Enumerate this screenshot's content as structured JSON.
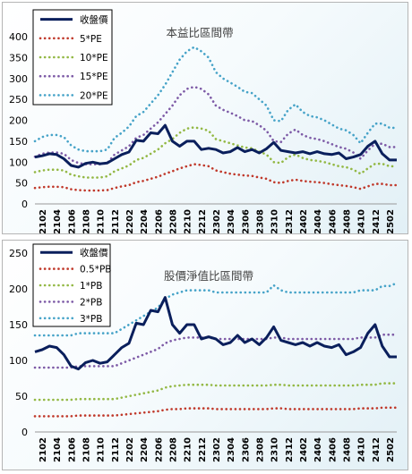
{
  "chart_data": [
    {
      "type": "line",
      "title": "本益比區間帶",
      "x": [
        "2101",
        "2102",
        "2103",
        "2104",
        "2105",
        "2106",
        "2107",
        "2108",
        "2109",
        "2110",
        "2111",
        "2112",
        "2201",
        "2202",
        "2203",
        "2204",
        "2205",
        "2206",
        "2207",
        "2208",
        "2209",
        "2210",
        "2211",
        "2212",
        "2301",
        "2302",
        "2303",
        "2304",
        "2305",
        "2306",
        "2307",
        "2308",
        "2309",
        "2310",
        "2311",
        "2312",
        "2401",
        "2402",
        "2403",
        "2404",
        "2405",
        "2406",
        "2407",
        "2408",
        "2409",
        "2410",
        "2411",
        "2412",
        "2501",
        "2502",
        "2503"
      ],
      "x_tick_labels": [
        "2102",
        "2104",
        "2106",
        "2108",
        "2110",
        "2112",
        "2202",
        "2204",
        "2206",
        "2208",
        "2210",
        "2212",
        "2302",
        "2304",
        "2306",
        "2308",
        "2310",
        "2312",
        "2402",
        "2404",
        "2406",
        "2408",
        "2410",
        "2412",
        "2502"
      ],
      "ylim": [
        0,
        400
      ],
      "yticks": [
        0,
        50,
        100,
        150,
        200,
        250,
        300,
        350,
        400
      ],
      "legend_position": "top-left",
      "grid": false,
      "series": [
        {
          "name": "收盤價",
          "style": "solid",
          "color": "#0a1f5c",
          "values": [
            112,
            115,
            120,
            118,
            108,
            92,
            88,
            97,
            100,
            96,
            98,
            108,
            118,
            124,
            152,
            150,
            170,
            168,
            188,
            150,
            138,
            150,
            150,
            130,
            133,
            130,
            122,
            125,
            135,
            125,
            130,
            122,
            132,
            147,
            128,
            125,
            122,
            125,
            120,
            125,
            120,
            118,
            122,
            108,
            112,
            118,
            138,
            150,
            120,
            105,
            105
          ]
        },
        {
          "name": "5*PE",
          "style": "dotted",
          "color": "#c0392b",
          "values": [
            38,
            40,
            41,
            41,
            40,
            35,
            33,
            32,
            32,
            32,
            33,
            38,
            42,
            45,
            52,
            55,
            60,
            65,
            72,
            78,
            85,
            90,
            95,
            93,
            90,
            80,
            76,
            72,
            70,
            68,
            67,
            63,
            60,
            52,
            50,
            55,
            58,
            55,
            53,
            52,
            50,
            47,
            45,
            43,
            40,
            36,
            42,
            48,
            48,
            45,
            45
          ]
        },
        {
          "name": "10*PE",
          "style": "dotted",
          "color": "#93b844",
          "values": [
            76,
            80,
            82,
            82,
            80,
            70,
            66,
            63,
            63,
            63,
            66,
            78,
            85,
            92,
            105,
            110,
            120,
            130,
            145,
            155,
            170,
            180,
            183,
            180,
            175,
            155,
            150,
            145,
            140,
            135,
            133,
            125,
            118,
            100,
            98,
            112,
            118,
            110,
            105,
            103,
            100,
            95,
            90,
            88,
            82,
            72,
            85,
            96,
            96,
            90,
            90
          ]
        },
        {
          "name": "15*PE",
          "style": "dotted",
          "color": "#7d5aa6",
          "values": [
            113,
            120,
            123,
            123,
            120,
            105,
            98,
            95,
            95,
            95,
            98,
            118,
            128,
            138,
            158,
            165,
            180,
            195,
            215,
            235,
            260,
            275,
            280,
            275,
            262,
            235,
            225,
            218,
            210,
            200,
            198,
            188,
            175,
            150,
            148,
            168,
            178,
            165,
            158,
            155,
            150,
            143,
            136,
            132,
            123,
            108,
            128,
            144,
            144,
            136,
            136
          ]
        },
        {
          "name": "20*PE",
          "style": "dotted",
          "color": "#46a3c8",
          "values": [
            150,
            160,
            165,
            165,
            160,
            140,
            130,
            126,
            126,
            126,
            130,
            158,
            170,
            185,
            210,
            220,
            240,
            260,
            285,
            315,
            345,
            365,
            375,
            365,
            350,
            315,
            300,
            290,
            280,
            268,
            265,
            250,
            235,
            200,
            198,
            225,
            238,
            220,
            210,
            207,
            200,
            190,
            180,
            176,
            165,
            145,
            170,
            192,
            192,
            182,
            182
          ]
        }
      ]
    },
    {
      "type": "line",
      "title": "股價淨值比區間帶",
      "x": [
        "2101",
        "2102",
        "2103",
        "2104",
        "2105",
        "2106",
        "2107",
        "2108",
        "2109",
        "2110",
        "2111",
        "2112",
        "2201",
        "2202",
        "2203",
        "2204",
        "2205",
        "2206",
        "2207",
        "2208",
        "2209",
        "2210",
        "2211",
        "2212",
        "2301",
        "2302",
        "2303",
        "2304",
        "2305",
        "2306",
        "2307",
        "2308",
        "2309",
        "2310",
        "2311",
        "2312",
        "2401",
        "2402",
        "2403",
        "2404",
        "2405",
        "2406",
        "2407",
        "2408",
        "2409",
        "2410",
        "2411",
        "2412",
        "2501",
        "2502",
        "2503"
      ],
      "x_tick_labels": [
        "2102",
        "2104",
        "2106",
        "2108",
        "2110",
        "2112",
        "2202",
        "2204",
        "2206",
        "2208",
        "2210",
        "2212",
        "2302",
        "2304",
        "2306",
        "2308",
        "2310",
        "2312",
        "2402",
        "2404",
        "2406",
        "2408",
        "2410",
        "2412",
        "2502"
      ],
      "ylim": [
        0,
        250
      ],
      "yticks": [
        0,
        50,
        100,
        150,
        200,
        250
      ],
      "legend_position": "top-left",
      "grid": false,
      "series": [
        {
          "name": "收盤價",
          "style": "solid",
          "color": "#0a1f5c",
          "values": [
            112,
            115,
            120,
            118,
            108,
            92,
            88,
            97,
            100,
            96,
            98,
            108,
            118,
            124,
            152,
            150,
            170,
            168,
            188,
            150,
            138,
            150,
            150,
            130,
            133,
            130,
            122,
            125,
            135,
            125,
            130,
            122,
            132,
            147,
            128,
            125,
            122,
            125,
            120,
            125,
            120,
            118,
            122,
            108,
            112,
            118,
            138,
            150,
            120,
            105,
            105
          ]
        },
        {
          "name": "0.5*PB",
          "style": "dotted",
          "color": "#c0392b",
          "values": [
            22,
            22,
            22,
            22,
            22,
            22,
            23,
            23,
            23,
            23,
            23,
            23,
            24,
            25,
            26,
            27,
            28,
            29,
            31,
            32,
            32,
            33,
            33,
            33,
            33,
            32,
            32,
            32,
            32,
            32,
            32,
            32,
            32,
            33,
            33,
            32,
            32,
            32,
            32,
            32,
            32,
            32,
            32,
            32,
            32,
            33,
            33,
            33,
            34,
            34,
            34
          ]
        },
        {
          "name": "1*PB",
          "style": "dotted",
          "color": "#93b844",
          "values": [
            45,
            45,
            45,
            45,
            45,
            45,
            46,
            46,
            46,
            46,
            46,
            46,
            48,
            50,
            52,
            54,
            56,
            58,
            62,
            64,
            65,
            66,
            66,
            66,
            66,
            65,
            65,
            65,
            65,
            65,
            65,
            65,
            65,
            66,
            66,
            65,
            65,
            65,
            65,
            65,
            65,
            65,
            65,
            65,
            65,
            66,
            66,
            66,
            68,
            68,
            68
          ]
        },
        {
          "name": "2*PB",
          "style": "dotted",
          "color": "#7d5aa6",
          "values": [
            90,
            90,
            90,
            90,
            90,
            90,
            92,
            92,
            92,
            92,
            92,
            92,
            96,
            100,
            104,
            108,
            112,
            116,
            124,
            128,
            130,
            132,
            132,
            132,
            132,
            130,
            130,
            130,
            130,
            130,
            130,
            130,
            130,
            132,
            132,
            130,
            130,
            130,
            130,
            130,
            130,
            130,
            130,
            130,
            130,
            132,
            132,
            132,
            136,
            136,
            136
          ]
        },
        {
          "name": "3*PB",
          "style": "dotted",
          "color": "#46a3c8",
          "values": [
            135,
            135,
            135,
            135,
            135,
            135,
            138,
            138,
            138,
            138,
            138,
            138,
            144,
            150,
            156,
            162,
            168,
            174,
            186,
            192,
            195,
            198,
            198,
            198,
            198,
            195,
            195,
            195,
            195,
            195,
            195,
            195,
            195,
            205,
            198,
            195,
            195,
            195,
            195,
            195,
            195,
            195,
            195,
            195,
            195,
            198,
            198,
            198,
            204,
            204,
            208
          ]
        }
      ]
    }
  ]
}
